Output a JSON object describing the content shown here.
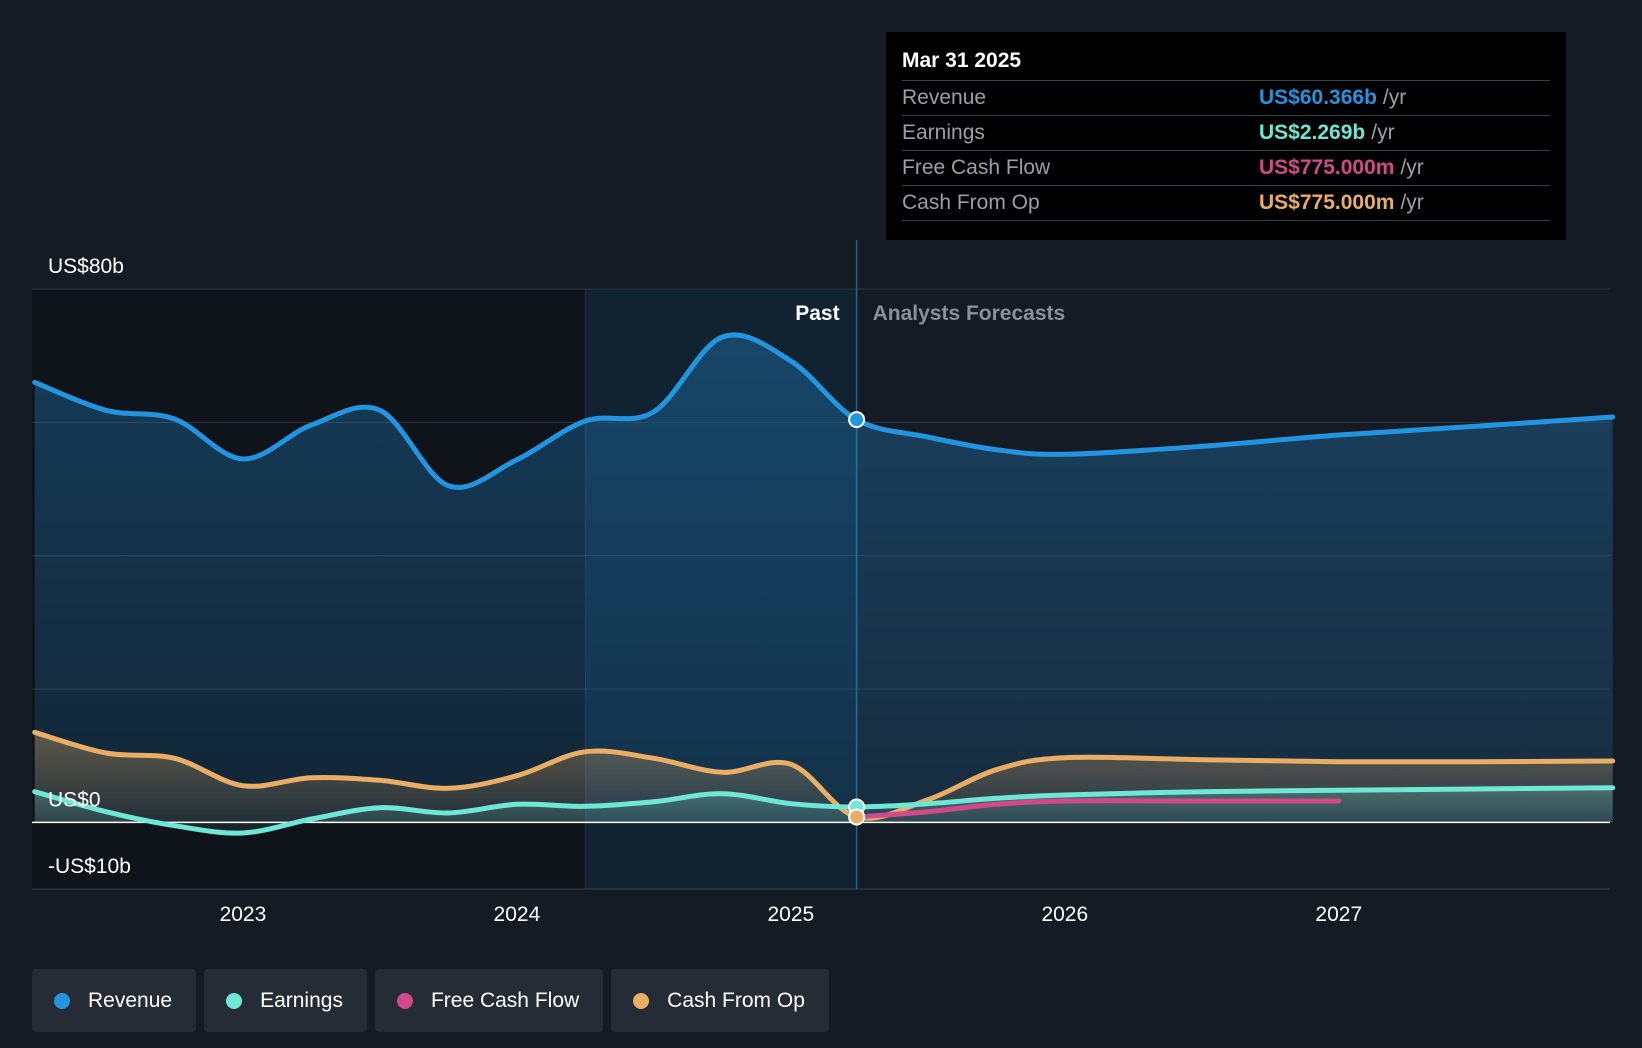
{
  "colors": {
    "revenue": "#2394df",
    "earnings": "#6ee7d7",
    "free_cash_flow": "#d2498a",
    "cash_from_op": "#e9ae64",
    "background": "#151b24"
  },
  "tooltip": {
    "date": "Mar 31 2025",
    "rows": [
      {
        "label": "Revenue",
        "value": "US$60.366b",
        "unit": "/yr"
      },
      {
        "label": "Earnings",
        "value": "US$2.269b",
        "unit": "/yr"
      },
      {
        "label": "Free Cash Flow",
        "value": "US$775.000m",
        "unit": "/yr"
      },
      {
        "label": "Cash From Op",
        "value": "US$775.000m",
        "unit": "/yr"
      }
    ]
  },
  "legend": [
    {
      "label": "Revenue",
      "icon": "revenue-dot-icon"
    },
    {
      "label": "Earnings",
      "icon": "earnings-dot-icon"
    },
    {
      "label": "Free Cash Flow",
      "icon": "free-cash-flow-dot-icon"
    },
    {
      "label": "Cash From Op",
      "icon": "cash-from-op-dot-icon"
    }
  ],
  "chart_data": {
    "type": "line",
    "title": "",
    "xlabel": "",
    "ylabel": "",
    "ylim": [
      -10,
      80
    ],
    "xlim": [
      2022.23,
      2027.99
    ],
    "y_tick_labels": [
      {
        "value": 80,
        "label": "US$80b"
      },
      {
        "value": 0,
        "label": "US$0"
      },
      {
        "value": -10,
        "label": "-US$10b"
      }
    ],
    "gridlines": [
      80,
      60,
      40,
      20
    ],
    "x_ticks": [
      {
        "value": 2023.0,
        "label": "2023"
      },
      {
        "value": 2024.0,
        "label": "2024"
      },
      {
        "value": 2025.0,
        "label": "2025"
      },
      {
        "value": 2026.0,
        "label": "2026"
      },
      {
        "value": 2027.0,
        "label": "2027"
      }
    ],
    "divider_x": 2025.24,
    "highlight_start_x": 2024.25,
    "past_label": "Past",
    "forecast_label": "Analysts Forecasts",
    "series": [
      {
        "name": "Revenue",
        "key": "revenue",
        "points": [
          [
            2022.24,
            66
          ],
          [
            2022.5,
            61.8
          ],
          [
            2022.75,
            60.5
          ],
          [
            2023.0,
            54.5
          ],
          [
            2023.25,
            59.6
          ],
          [
            2023.5,
            61.8
          ],
          [
            2023.75,
            50.5
          ],
          [
            2024.0,
            54.4
          ],
          [
            2024.25,
            60.2
          ],
          [
            2024.5,
            61.6
          ],
          [
            2024.75,
            72.8
          ],
          [
            2025.0,
            69.2
          ],
          [
            2025.24,
            60.4
          ],
          [
            2025.5,
            57.8
          ],
          [
            2025.75,
            55.9
          ],
          [
            2026.0,
            55.2
          ],
          [
            2026.5,
            56.4
          ],
          [
            2027.0,
            58.1
          ],
          [
            2027.5,
            59.4
          ],
          [
            2028.0,
            60.8
          ]
        ]
      },
      {
        "name": "Earnings",
        "key": "earnings",
        "points": [
          [
            2022.24,
            4.6
          ],
          [
            2022.5,
            1.6
          ],
          [
            2022.75,
            -0.5
          ],
          [
            2023.0,
            -1.6
          ],
          [
            2023.25,
            0.5
          ],
          [
            2023.5,
            2.2
          ],
          [
            2023.75,
            1.4
          ],
          [
            2024.0,
            2.7
          ],
          [
            2024.25,
            2.4
          ],
          [
            2024.5,
            3.1
          ],
          [
            2024.75,
            4.3
          ],
          [
            2025.0,
            2.8
          ],
          [
            2025.24,
            2.3
          ],
          [
            2025.5,
            2.8
          ],
          [
            2025.75,
            3.6
          ],
          [
            2026.0,
            4.1
          ],
          [
            2026.5,
            4.6
          ],
          [
            2027.0,
            4.8
          ],
          [
            2027.5,
            5.0
          ],
          [
            2028.0,
            5.2
          ]
        ]
      },
      {
        "name": "Free Cash Flow",
        "key": "free_cash_flow",
        "points": [
          [
            2025.24,
            0.8
          ],
          [
            2025.5,
            1.6
          ],
          [
            2025.75,
            2.7
          ],
          [
            2026.0,
            3.2
          ],
          [
            2026.5,
            3.2
          ],
          [
            2027.0,
            3.2
          ]
        ]
      },
      {
        "name": "Cash From Op",
        "key": "cash_from_op",
        "points": [
          [
            2022.24,
            13.5
          ],
          [
            2022.5,
            10.4
          ],
          [
            2022.75,
            9.6
          ],
          [
            2023.0,
            5.5
          ],
          [
            2023.25,
            6.7
          ],
          [
            2023.5,
            6.3
          ],
          [
            2023.75,
            5.1
          ],
          [
            2024.0,
            7.0
          ],
          [
            2024.25,
            10.6
          ],
          [
            2024.5,
            9.6
          ],
          [
            2024.75,
            7.5
          ],
          [
            2025.0,
            8.7
          ],
          [
            2025.24,
            0.8
          ],
          [
            2025.5,
            3.4
          ],
          [
            2025.75,
            7.9
          ],
          [
            2026.0,
            9.7
          ],
          [
            2026.5,
            9.4
          ],
          [
            2027.0,
            9.1
          ],
          [
            2027.5,
            9.1
          ],
          [
            2028.0,
            9.2
          ]
        ]
      }
    ]
  }
}
